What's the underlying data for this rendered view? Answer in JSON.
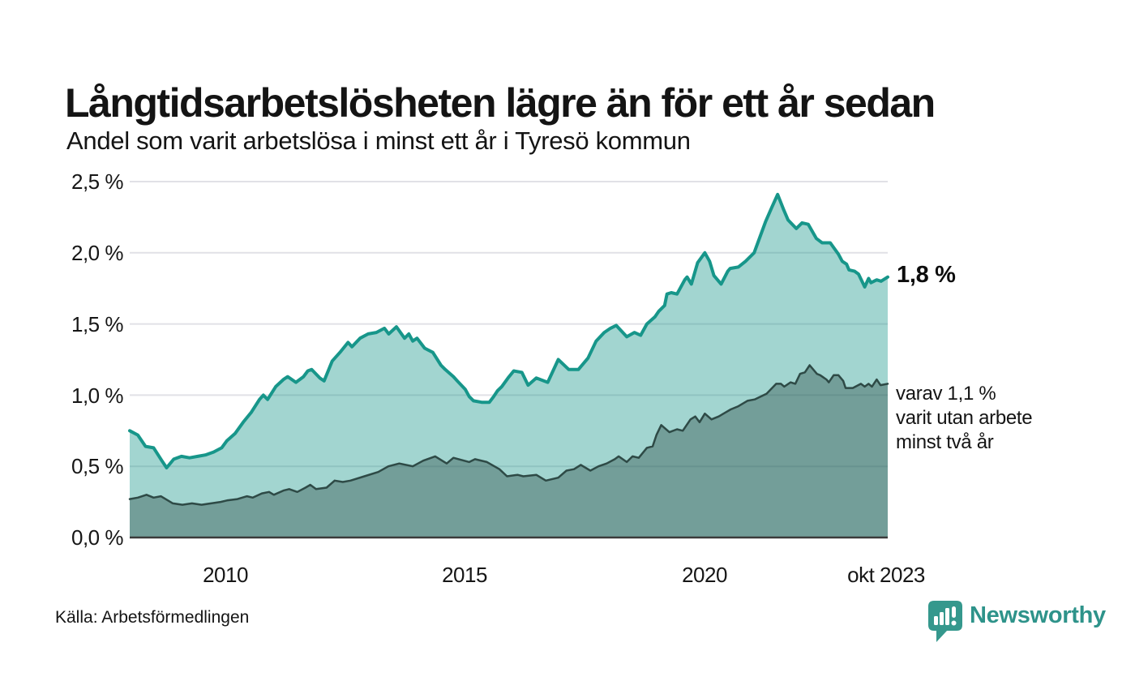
{
  "annotations": {
    "total_label": "1,8 %",
    "secondary_label": "varav 1,1 %\nvarit utan arbete\nminst två år"
  },
  "footer": {
    "source": "Källa: Arbetsförmedlingen",
    "brand": "Newsworthy"
  },
  "colors": {
    "series_total_line": "#17968A",
    "series_total_fill": "rgba(23,150,138,0.40)",
    "series_two_years_line": "#2E4A46",
    "series_two_years_fill": "rgba(46,74,70,0.40)",
    "gridline": "#E1E1E6",
    "axis_line": "#3B3B3B",
    "brand_teal": "#2E938A",
    "text": "#141414"
  },
  "chart_data": {
    "type": "area",
    "title": "Långtidsarbetslösheten lägre än för ett år sedan",
    "subtitle": "Andel som varit arbetslösa i minst ett år i Tyresö kommun",
    "source": "Källa: Arbetsförmedlingen",
    "grid": "horizontal",
    "legend_position": "end-of-line annotations",
    "xlim": [
      2008.0,
      2023.83
    ],
    "ylim": [
      0,
      2.5
    ],
    "grid_color": "#E1E1E6",
    "axis_color": "#3B3B3B",
    "y_ticks": [
      {
        "label": "2,5 %",
        "value": 2.5
      },
      {
        "label": "2,0 %",
        "value": 2.0
      },
      {
        "label": "1,5 %",
        "value": 1.5
      },
      {
        "label": "1,0 %",
        "value": 1.0
      },
      {
        "label": "0,5 %",
        "value": 0.5
      },
      {
        "label": "0,0 %",
        "value": 0.0
      }
    ],
    "x_ticks": [
      {
        "label": "2010",
        "x": 2010
      },
      {
        "label": "2015",
        "x": 2015
      },
      {
        "label": "2020",
        "x": 2020
      },
      {
        "label": "okt 2023",
        "x": 2023.79
      }
    ],
    "series": [
      {
        "name": "Andel som varit arbetslösa i minst ett år",
        "end_label": "1,8 %",
        "end_value": 1.8,
        "color": "#17968A",
        "fill": "rgba(23,150,138,0.40)",
        "line_width": 4,
        "points": [
          [
            2008.0,
            0.75
          ],
          [
            2008.17,
            0.72
          ],
          [
            2008.33,
            0.64
          ],
          [
            2008.5,
            0.63
          ],
          [
            2008.67,
            0.54
          ],
          [
            2008.77,
            0.49
          ],
          [
            2008.92,
            0.55
          ],
          [
            2009.08,
            0.57
          ],
          [
            2009.25,
            0.56
          ],
          [
            2009.42,
            0.57
          ],
          [
            2009.58,
            0.58
          ],
          [
            2009.75,
            0.6
          ],
          [
            2009.92,
            0.63
          ],
          [
            2010.03,
            0.68
          ],
          [
            2010.2,
            0.73
          ],
          [
            2010.37,
            0.81
          ],
          [
            2010.54,
            0.88
          ],
          [
            2010.71,
            0.97
          ],
          [
            2010.79,
            1.0
          ],
          [
            2010.88,
            0.97
          ],
          [
            2011.05,
            1.06
          ],
          [
            2011.21,
            1.11
          ],
          [
            2011.3,
            1.13
          ],
          [
            2011.47,
            1.09
          ],
          [
            2011.63,
            1.13
          ],
          [
            2011.72,
            1.17
          ],
          [
            2011.8,
            1.18
          ],
          [
            2011.97,
            1.12
          ],
          [
            2012.06,
            1.1
          ],
          [
            2012.23,
            1.24
          ],
          [
            2012.39,
            1.3
          ],
          [
            2012.56,
            1.37
          ],
          [
            2012.64,
            1.34
          ],
          [
            2012.81,
            1.4
          ],
          [
            2012.98,
            1.43
          ],
          [
            2013.15,
            1.44
          ],
          [
            2013.32,
            1.47
          ],
          [
            2013.41,
            1.43
          ],
          [
            2013.57,
            1.48
          ],
          [
            2013.74,
            1.4
          ],
          [
            2013.83,
            1.43
          ],
          [
            2013.91,
            1.38
          ],
          [
            2014.0,
            1.4
          ],
          [
            2014.16,
            1.33
          ],
          [
            2014.33,
            1.3
          ],
          [
            2014.5,
            1.21
          ],
          [
            2014.59,
            1.18
          ],
          [
            2014.76,
            1.13
          ],
          [
            2014.84,
            1.1
          ],
          [
            2015.01,
            1.04
          ],
          [
            2015.09,
            0.99
          ],
          [
            2015.18,
            0.96
          ],
          [
            2015.35,
            0.95
          ],
          [
            2015.51,
            0.95
          ],
          [
            2015.6,
            0.99
          ],
          [
            2015.68,
            1.03
          ],
          [
            2015.77,
            1.06
          ],
          [
            2015.9,
            1.12
          ],
          [
            2016.02,
            1.17
          ],
          [
            2016.19,
            1.16
          ],
          [
            2016.32,
            1.07
          ],
          [
            2016.49,
            1.12
          ],
          [
            2016.73,
            1.09
          ],
          [
            2016.95,
            1.25
          ],
          [
            2017.17,
            1.18
          ],
          [
            2017.37,
            1.18
          ],
          [
            2017.57,
            1.26
          ],
          [
            2017.74,
            1.38
          ],
          [
            2017.91,
            1.44
          ],
          [
            2018.04,
            1.47
          ],
          [
            2018.16,
            1.49
          ],
          [
            2018.38,
            1.41
          ],
          [
            2018.54,
            1.44
          ],
          [
            2018.67,
            1.42
          ],
          [
            2018.8,
            1.5
          ],
          [
            2018.97,
            1.55
          ],
          [
            2019.05,
            1.59
          ],
          [
            2019.17,
            1.63
          ],
          [
            2019.22,
            1.71
          ],
          [
            2019.31,
            1.72
          ],
          [
            2019.43,
            1.71
          ],
          [
            2019.59,
            1.81
          ],
          [
            2019.64,
            1.83
          ],
          [
            2019.73,
            1.78
          ],
          [
            2019.86,
            1.93
          ],
          [
            2020.01,
            2.0
          ],
          [
            2020.11,
            1.94
          ],
          [
            2020.2,
            1.84
          ],
          [
            2020.35,
            1.78
          ],
          [
            2020.49,
            1.87
          ],
          [
            2020.54,
            1.89
          ],
          [
            2020.71,
            1.9
          ],
          [
            2020.86,
            1.94
          ],
          [
            2021.04,
            2.0
          ],
          [
            2021.16,
            2.11
          ],
          [
            2021.28,
            2.22
          ],
          [
            2021.41,
            2.32
          ],
          [
            2021.53,
            2.41
          ],
          [
            2021.66,
            2.3
          ],
          [
            2021.75,
            2.23
          ],
          [
            2021.92,
            2.17
          ],
          [
            2022.04,
            2.21
          ],
          [
            2022.17,
            2.2
          ],
          [
            2022.34,
            2.1
          ],
          [
            2022.46,
            2.07
          ],
          [
            2022.63,
            2.07
          ],
          [
            2022.8,
            1.99
          ],
          [
            2022.88,
            1.94
          ],
          [
            2022.97,
            1.92
          ],
          [
            2023.02,
            1.88
          ],
          [
            2023.14,
            1.87
          ],
          [
            2023.22,
            1.85
          ],
          [
            2023.35,
            1.76
          ],
          [
            2023.43,
            1.82
          ],
          [
            2023.48,
            1.79
          ],
          [
            2023.6,
            1.81
          ],
          [
            2023.69,
            1.8
          ],
          [
            2023.83,
            1.83
          ]
        ]
      },
      {
        "name": "varav utan arbete minst två år",
        "end_label": "varav 1,1 % varit utan arbete minst två år",
        "end_value": 1.1,
        "color": "#2E4A46",
        "fill": "rgba(46,74,70,0.40)",
        "line_width": 2.5,
        "points": [
          [
            2008.0,
            0.27
          ],
          [
            2008.17,
            0.28
          ],
          [
            2008.35,
            0.3
          ],
          [
            2008.5,
            0.28
          ],
          [
            2008.65,
            0.29
          ],
          [
            2008.9,
            0.24
          ],
          [
            2009.1,
            0.23
          ],
          [
            2009.3,
            0.24
          ],
          [
            2009.5,
            0.23
          ],
          [
            2009.7,
            0.24
          ],
          [
            2009.9,
            0.25
          ],
          [
            2010.03,
            0.26
          ],
          [
            2010.25,
            0.27
          ],
          [
            2010.45,
            0.29
          ],
          [
            2010.57,
            0.28
          ],
          [
            2010.76,
            0.31
          ],
          [
            2010.91,
            0.32
          ],
          [
            2011.01,
            0.3
          ],
          [
            2011.21,
            0.33
          ],
          [
            2011.33,
            0.34
          ],
          [
            2011.5,
            0.32
          ],
          [
            2011.67,
            0.35
          ],
          [
            2011.77,
            0.37
          ],
          [
            2011.89,
            0.34
          ],
          [
            2012.11,
            0.35
          ],
          [
            2012.28,
            0.4
          ],
          [
            2012.45,
            0.39
          ],
          [
            2012.61,
            0.4
          ],
          [
            2012.9,
            0.43
          ],
          [
            2013.19,
            0.46
          ],
          [
            2013.4,
            0.5
          ],
          [
            2013.63,
            0.52
          ],
          [
            2013.91,
            0.5
          ],
          [
            2014.13,
            0.54
          ],
          [
            2014.38,
            0.57
          ],
          [
            2014.62,
            0.52
          ],
          [
            2014.76,
            0.56
          ],
          [
            2015.09,
            0.53
          ],
          [
            2015.21,
            0.55
          ],
          [
            2015.46,
            0.53
          ],
          [
            2015.72,
            0.48
          ],
          [
            2015.88,
            0.43
          ],
          [
            2016.1,
            0.44
          ],
          [
            2016.22,
            0.43
          ],
          [
            2016.49,
            0.44
          ],
          [
            2016.69,
            0.4
          ],
          [
            2016.95,
            0.42
          ],
          [
            2017.12,
            0.47
          ],
          [
            2017.28,
            0.48
          ],
          [
            2017.42,
            0.51
          ],
          [
            2017.62,
            0.47
          ],
          [
            2017.79,
            0.5
          ],
          [
            2017.96,
            0.52
          ],
          [
            2018.13,
            0.55
          ],
          [
            2018.21,
            0.57
          ],
          [
            2018.38,
            0.53
          ],
          [
            2018.5,
            0.57
          ],
          [
            2018.63,
            0.56
          ],
          [
            2018.8,
            0.63
          ],
          [
            2018.92,
            0.64
          ],
          [
            2019.0,
            0.72
          ],
          [
            2019.1,
            0.79
          ],
          [
            2019.27,
            0.74
          ],
          [
            2019.43,
            0.76
          ],
          [
            2019.55,
            0.75
          ],
          [
            2019.71,
            0.83
          ],
          [
            2019.81,
            0.85
          ],
          [
            2019.9,
            0.81
          ],
          [
            2020.01,
            0.87
          ],
          [
            2020.15,
            0.83
          ],
          [
            2020.3,
            0.85
          ],
          [
            2020.55,
            0.9
          ],
          [
            2020.7,
            0.92
          ],
          [
            2020.9,
            0.96
          ],
          [
            2021.05,
            0.97
          ],
          [
            2021.3,
            1.01
          ],
          [
            2021.5,
            1.08
          ],
          [
            2021.6,
            1.08
          ],
          [
            2021.67,
            1.06
          ],
          [
            2021.8,
            1.09
          ],
          [
            2021.9,
            1.08
          ],
          [
            2022.0,
            1.15
          ],
          [
            2022.1,
            1.16
          ],
          [
            2022.2,
            1.21
          ],
          [
            2022.35,
            1.15
          ],
          [
            2022.42,
            1.14
          ],
          [
            2022.55,
            1.11
          ],
          [
            2022.6,
            1.09
          ],
          [
            2022.7,
            1.14
          ],
          [
            2022.8,
            1.14
          ],
          [
            2022.9,
            1.1
          ],
          [
            2022.95,
            1.05
          ],
          [
            2023.1,
            1.05
          ],
          [
            2023.27,
            1.08
          ],
          [
            2023.35,
            1.06
          ],
          [
            2023.43,
            1.08
          ],
          [
            2023.5,
            1.06
          ],
          [
            2023.6,
            1.11
          ],
          [
            2023.68,
            1.07
          ],
          [
            2023.83,
            1.08
          ]
        ]
      }
    ]
  }
}
